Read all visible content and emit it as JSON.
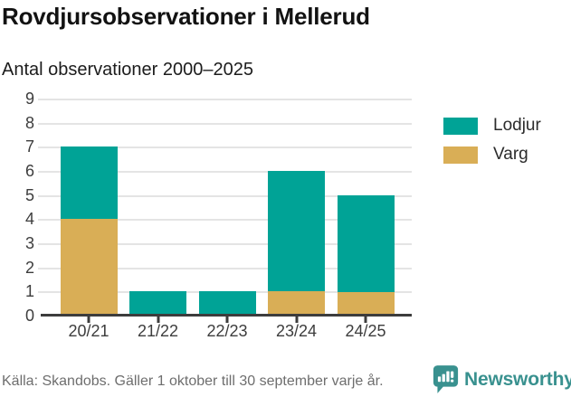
{
  "header": {
    "title": "Rovdjursobservationer i Mellerud",
    "subtitle": "Antal observationer 2000–2025"
  },
  "chart_data": {
    "type": "bar",
    "stacked": true,
    "categories": [
      "20/21",
      "21/22",
      "22/23",
      "23/24",
      "24/25"
    ],
    "series": [
      {
        "name": "Varg",
        "color": "#d9ae56",
        "values": [
          4,
          0,
          0,
          1,
          1
        ]
      },
      {
        "name": "Lodjur",
        "color": "#00a396",
        "values": [
          3,
          1,
          1,
          5,
          4
        ]
      }
    ],
    "totals": [
      7,
      1,
      1,
      6,
      5
    ],
    "title": "Rovdjursobservationer i Mellerud",
    "subtitle": "Antal observationer 2000–2025",
    "xlabel": "",
    "ylabel": "",
    "ylim": [
      0,
      9
    ],
    "yticks": [
      0,
      1,
      2,
      3,
      4,
      5,
      6,
      7,
      8,
      9
    ],
    "grid": true,
    "legend_position": "right",
    "legend": [
      {
        "label": "Lodjur",
        "color": "#00a396"
      },
      {
        "label": "Varg",
        "color": "#d9ae56"
      }
    ]
  },
  "footer": {
    "source": "Källa: Skandobs. Gäller 1 oktober till 30 september varje år.",
    "brand": "Newsworthy"
  },
  "colors": {
    "lodjur": "#00a396",
    "varg": "#d9ae56",
    "axis": "#3d3d3d",
    "grid": "#e4e4e4",
    "brand_teal": "#39918f"
  },
  "icons": {
    "brand_logo": "newsworthy-bubble-barchart-icon"
  }
}
